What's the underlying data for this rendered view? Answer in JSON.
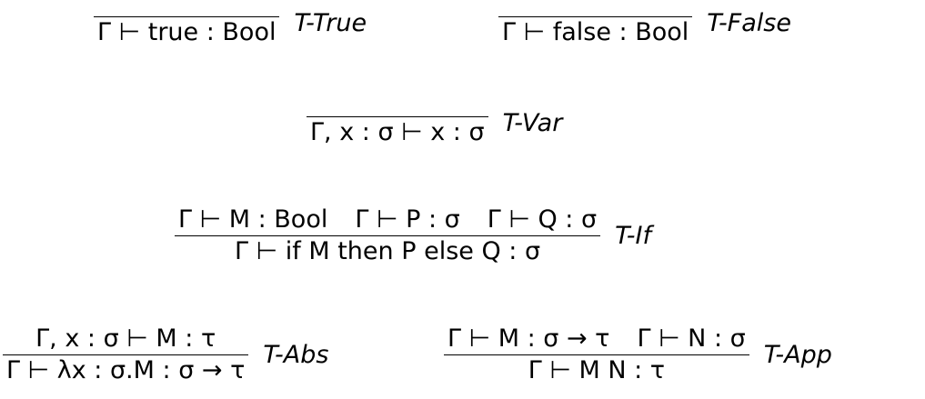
{
  "rules": [
    {
      "id": "t-true",
      "premises": [],
      "conclusion": "Γ ⊢ true : Bool",
      "name": "T-True"
    },
    {
      "id": "t-false",
      "premises": [],
      "conclusion": "Γ ⊢ false : Bool",
      "name": "T-False"
    },
    {
      "id": "t-var",
      "premises": [],
      "conclusion": "Γ, x : σ ⊢ x : σ",
      "name": "T-Var"
    },
    {
      "id": "t-if",
      "premises": [
        "Γ ⊢ M : Bool",
        "Γ ⊢ P : σ",
        "Γ ⊢ Q : σ"
      ],
      "conclusion": "Γ ⊢ if M then P else Q : σ",
      "name": "T-If"
    },
    {
      "id": "t-abs",
      "premises": [
        "Γ, x : σ ⊢ M : τ"
      ],
      "conclusion": "Γ ⊢ λx : σ.M : σ → τ",
      "name": "T-Abs"
    },
    {
      "id": "t-app",
      "premises": [
        "Γ ⊢ M : σ → τ",
        "Γ ⊢ N : σ"
      ],
      "conclusion": "Γ ⊢ M N : τ",
      "name": "T-App"
    }
  ]
}
